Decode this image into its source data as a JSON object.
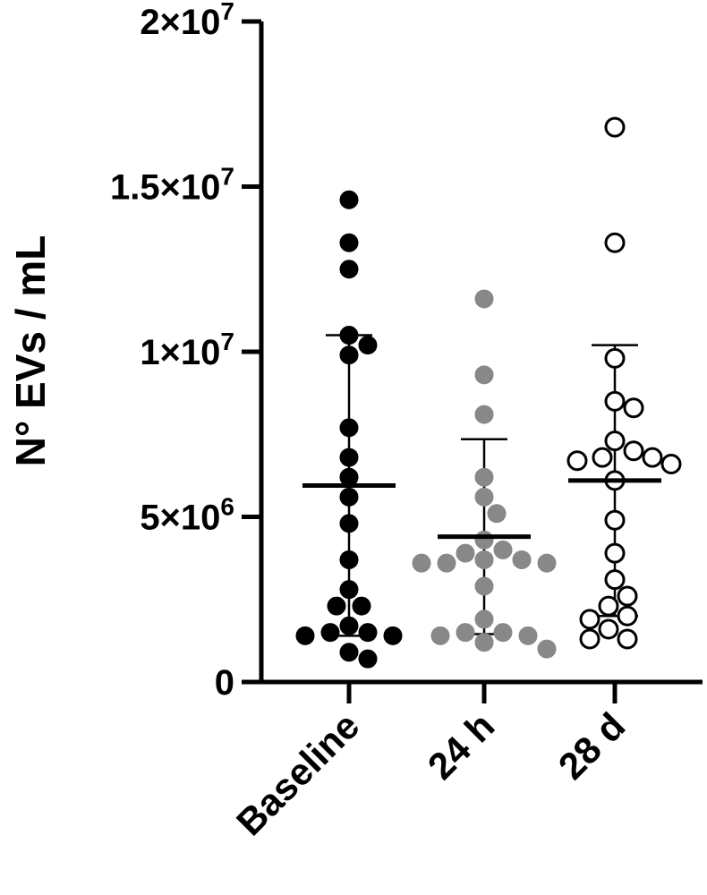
{
  "chart_data": {
    "type": "scatter",
    "ylabel": "N° EVs / mL",
    "ylim": [
      0,
      20000000
    ],
    "y_ticks": [
      {
        "value": 0,
        "base": "0",
        "exp": ""
      },
      {
        "value": 5000000,
        "base": "5×10",
        "exp": "6"
      },
      {
        "value": 10000000,
        "base": "1×10",
        "exp": "7"
      },
      {
        "value": 15000000,
        "base": "1.5×10",
        "exp": "7"
      },
      {
        "value": 20000000,
        "base": "2×10",
        "exp": "7"
      }
    ],
    "categories": [
      "Baseline",
      "24 h",
      "28 d"
    ],
    "series": [
      {
        "category": "Baseline",
        "color": "#000000",
        "fill": "#000000",
        "values": [
          14600000,
          13300000,
          12500000,
          10500000,
          10200000,
          9900000,
          7700000,
          6800000,
          6200000,
          5600000,
          4800000,
          3700000,
          2800000,
          2300000,
          2300000,
          1700000,
          1500000,
          1500000,
          1400000,
          1400000,
          900000,
          700000
        ],
        "mean": 5950000,
        "sd_upper": 10500000,
        "sd_lower": 1400000
      },
      {
        "category": "24 h",
        "color": "#888888",
        "fill": "#888888",
        "values": [
          11600000,
          9300000,
          8100000,
          6200000,
          5600000,
          5100000,
          4300000,
          4000000,
          3900000,
          3700000,
          3700000,
          3600000,
          3600000,
          3600000,
          2900000,
          1900000,
          1500000,
          1500000,
          1400000,
          1400000,
          1200000,
          1000000
        ],
        "mean": 4400000,
        "sd_upper": 7350000,
        "sd_lower": 1450000
      },
      {
        "category": "28 d",
        "color": "#000000",
        "fill": "#ffffff",
        "values": [
          16800000,
          13300000,
          9800000,
          8500000,
          8300000,
          7300000,
          7000000,
          6800000,
          6800000,
          6700000,
          6600000,
          6100000,
          4900000,
          3900000,
          3100000,
          2600000,
          2300000,
          2000000,
          1900000,
          1600000,
          1300000,
          1300000
        ],
        "mean": 6100000,
        "sd_upper": 10200000,
        "sd_lower": 2000000
      }
    ]
  }
}
